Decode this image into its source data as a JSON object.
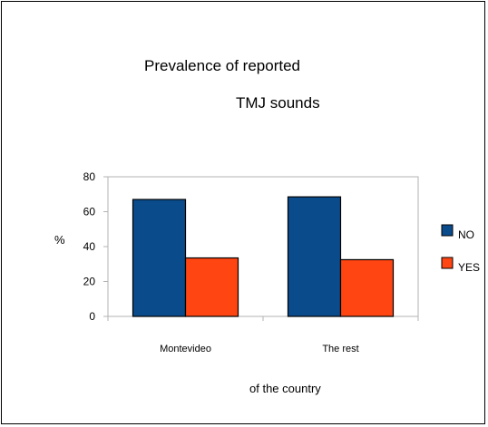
{
  "chart_data": {
    "type": "bar",
    "title_line1": "Prevalence of reported",
    "title_line2": "TMJ sounds",
    "xlabel": "of the country",
    "ylabel": "%",
    "categories": [
      "Montevideo",
      "The rest"
    ],
    "series": [
      {
        "name": "NO",
        "values": [
          67,
          68.5
        ],
        "color": "#0a4b8c"
      },
      {
        "name": "YES",
        "values": [
          33.5,
          32.5
        ],
        "color": "#ff4512"
      }
    ],
    "ylim": [
      0,
      80
    ],
    "yticks": [
      0,
      20,
      40,
      60,
      80
    ],
    "grid": false,
    "legend_position": "right"
  }
}
